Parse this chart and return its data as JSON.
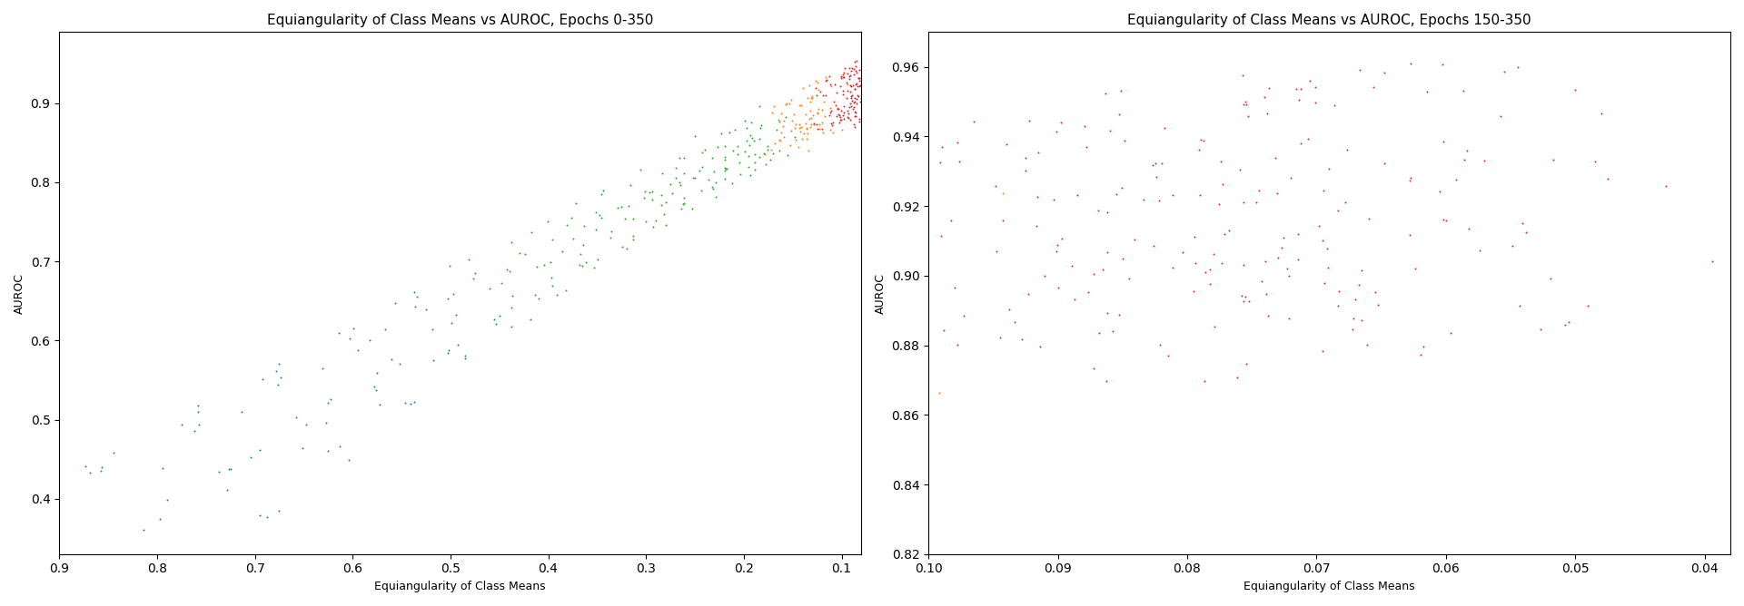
{
  "title1": "Equiangularity of Class Means vs AUROC, Epochs 0-350",
  "title2": "Equiangularity of Class Means vs AUROC, Epochs 150-350",
  "xlabel": "Equiangularity of Class Means",
  "ylabel": "AUROC",
  "color_blue": "#1f77b4",
  "color_green": "#2ca02c",
  "color_orange": "#ff7f0e",
  "color_red": "#d62728",
  "figsize": [
    19.2,
    6.68
  ],
  "dpi": 100,
  "marker_size": 8,
  "seed": 42,
  "n_seeds": 15,
  "left_xlim": [
    0.9,
    0.08
  ],
  "left_ylim": [
    0.33,
    0.99
  ],
  "right_xlim": [
    0.1,
    0.038
  ],
  "right_ylim": [
    0.82,
    0.97
  ]
}
